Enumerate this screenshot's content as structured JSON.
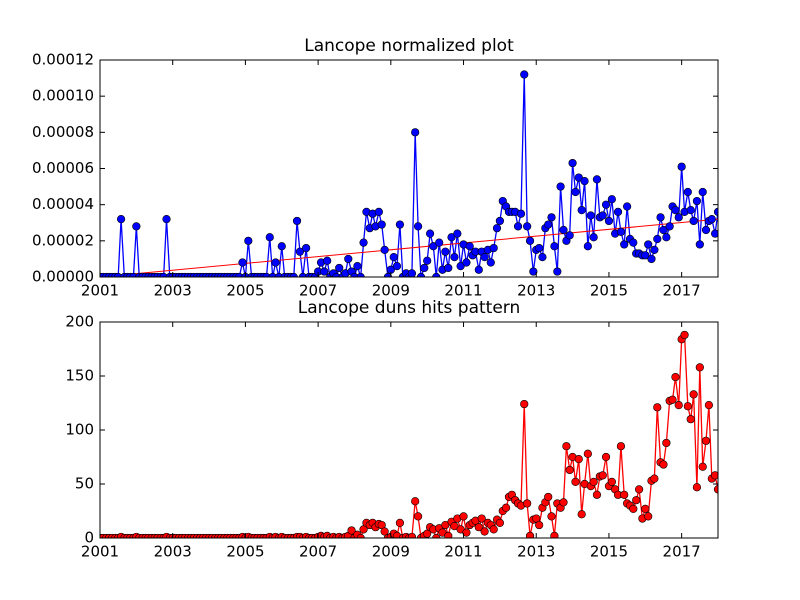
{
  "chart_data": [
    {
      "type": "line",
      "title": "Lancope normalized plot",
      "x": [
        2001,
        2001.08,
        2001.17,
        2001.25,
        2001.33,
        2001.42,
        2001.5,
        2001.58,
        2001.67,
        2001.75,
        2001.83,
        2001.92,
        2002,
        2002.08,
        2002.17,
        2002.25,
        2002.33,
        2002.42,
        2002.5,
        2002.58,
        2002.67,
        2002.75,
        2002.83,
        2002.92,
        2003,
        2003.08,
        2003.17,
        2003.25,
        2003.33,
        2003.42,
        2003.5,
        2003.58,
        2003.67,
        2003.75,
        2003.83,
        2003.92,
        2004,
        2004.08,
        2004.17,
        2004.25,
        2004.33,
        2004.42,
        2004.5,
        2004.58,
        2004.67,
        2004.75,
        2004.83,
        2004.92,
        2005,
        2005.08,
        2005.17,
        2005.25,
        2005.33,
        2005.42,
        2005.5,
        2005.58,
        2005.67,
        2005.75,
        2005.83,
        2005.92,
        2006,
        2006.08,
        2006.17,
        2006.25,
        2006.33,
        2006.42,
        2006.5,
        2006.58,
        2006.67,
        2006.75,
        2006.83,
        2006.92,
        2007,
        2007.08,
        2007.17,
        2007.25,
        2007.33,
        2007.42,
        2007.5,
        2007.58,
        2007.67,
        2007.75,
        2007.83,
        2007.92,
        2008,
        2008.08,
        2008.17,
        2008.25,
        2008.33,
        2008.42,
        2008.5,
        2008.58,
        2008.67,
        2008.75,
        2008.83,
        2008.92,
        2009,
        2009.08,
        2009.17,
        2009.25,
        2009.33,
        2009.42,
        2009.5,
        2009.58,
        2009.67,
        2009.75,
        2009.83,
        2009.92,
        2010,
        2010.08,
        2010.17,
        2010.25,
        2010.33,
        2010.42,
        2010.5,
        2010.58,
        2010.67,
        2010.75,
        2010.83,
        2010.92,
        2011,
        2011.08,
        2011.17,
        2011.25,
        2011.33,
        2011.42,
        2011.5,
        2011.58,
        2011.67,
        2011.75,
        2011.83,
        2011.92,
        2012,
        2012.08,
        2012.17,
        2012.25,
        2012.33,
        2012.42,
        2012.5,
        2012.58,
        2012.67,
        2012.75,
        2012.83,
        2012.92,
        2013,
        2013.08,
        2013.17,
        2013.25,
        2013.33,
        2013.42,
        2013.5,
        2013.58,
        2013.67,
        2013.75,
        2013.83,
        2013.92,
        2014,
        2014.08,
        2014.17,
        2014.25,
        2014.33,
        2014.42,
        2014.5,
        2014.58,
        2014.67,
        2014.75,
        2014.83,
        2014.92,
        2015,
        2015.08,
        2015.17,
        2015.25,
        2015.33,
        2015.42,
        2015.5,
        2015.58,
        2015.67,
        2015.75,
        2015.83,
        2015.92,
        2016,
        2016.08,
        2016.17,
        2016.25,
        2016.33,
        2016.42,
        2016.5,
        2016.58,
        2016.67,
        2016.75,
        2016.83,
        2016.92,
        2017,
        2017.08,
        2017.17,
        2017.25,
        2017.33,
        2017.42,
        2017.5,
        2017.58,
        2017.67,
        2017.75,
        2017.83,
        2017.92,
        2018
      ],
      "series": [
        {
          "color": "#0000ff",
          "values": [
            0,
            0,
            0,
            0,
            0,
            0,
            0,
            3.2e-05,
            0,
            0,
            0,
            0,
            2.8e-05,
            0,
            0,
            0,
            0,
            0,
            0,
            0,
            0,
            0,
            3.2e-05,
            0,
            0,
            0,
            0,
            0,
            0,
            0,
            0,
            0,
            0,
            0,
            0,
            0,
            0,
            0,
            0,
            0,
            0,
            0,
            0,
            0,
            0,
            0,
            0,
            8e-06,
            0,
            2e-05,
            0,
            0,
            0,
            0,
            0,
            0,
            2.2e-05,
            0,
            8e-06,
            0,
            1.7e-05,
            0,
            0,
            0,
            0,
            3.1e-05,
            1.4e-05,
            0,
            1.6e-05,
            0,
            0,
            0,
            3e-06,
            8e-06,
            3e-06,
            9e-06,
            0,
            2e-06,
            0,
            5e-06,
            0,
            2e-06,
            1e-05,
            3e-06,
            0,
            6e-06,
            0,
            1.9e-05,
            3.6e-05,
            2.7e-05,
            3.5e-05,
            2.8e-05,
            3.6e-05,
            2.9e-05,
            1.5e-05,
            0,
            4e-06,
            1.1e-05,
            6e-06,
            2.9e-05,
            0,
            2e-06,
            0,
            2e-06,
            8e-05,
            2.8e-05,
            0,
            5e-06,
            9e-06,
            2.4e-05,
            1.7e-05,
            0,
            1.9e-05,
            4e-06,
            1.4e-05,
            5e-06,
            2.2e-05,
            1.1e-05,
            2.4e-05,
            6e-06,
            1.8e-05,
            8e-06,
            1.7e-05,
            1.2e-05,
            1.4e-05,
            4e-06,
            1.4e-05,
            1.1e-05,
            1.5e-05,
            8e-06,
            1.6e-05,
            2.7e-05,
            3.1e-05,
            4.2e-05,
            3.9e-05,
            3.6e-05,
            3.6e-05,
            3.6e-05,
            2.8e-05,
            3.5e-05,
            0.000112,
            2.8e-05,
            2e-05,
            3e-06,
            1.5e-05,
            1.6e-05,
            1.1e-05,
            2.7e-05,
            2.9e-05,
            3.3e-05,
            1.7e-05,
            3e-06,
            5e-05,
            2.6e-05,
            2e-05,
            2.3e-05,
            6.3e-05,
            4.7e-05,
            5.5e-05,
            3.7e-05,
            5.3e-05,
            1.7e-05,
            3.4e-05,
            2.2e-05,
            5.4e-05,
            3.3e-05,
            3.4e-05,
            4e-05,
            3.1e-05,
            4.3e-05,
            2.4e-05,
            3.6e-05,
            2.5e-05,
            1.8e-05,
            3.9e-05,
            2.1e-05,
            1.9e-05,
            1.3e-05,
            1.3e-05,
            1.2e-05,
            1.2e-05,
            1.8e-05,
            1e-05,
            1.5e-05,
            2.1e-05,
            3.3e-05,
            2.6e-05,
            2.2e-05,
            2.8e-05,
            3.9e-05,
            3.7e-05,
            3.3e-05,
            6.1e-05,
            3.6e-05,
            4.7e-05,
            3.7e-05,
            3.1e-05,
            4.2e-05,
            1.8e-05,
            4.7e-05,
            2.6e-05,
            3.1e-05,
            3.2e-05,
            2.4e-05,
            3.6e-05
          ]
        }
      ],
      "trend": {
        "x": [
          2001,
          2018
        ],
        "values": [
          0,
          3.2e-05
        ],
        "color": "#ff0000"
      },
      "xlim": [
        2001,
        2018
      ],
      "xticks": [
        2001,
        2003,
        2005,
        2007,
        2009,
        2011,
        2013,
        2015,
        2017
      ],
      "ylim": [
        0,
        0.00012
      ],
      "yticks": [
        {
          "value": 0,
          "label": "0.00000"
        },
        {
          "value": 2e-05,
          "label": "0.00002"
        },
        {
          "value": 4e-05,
          "label": "0.00004"
        },
        {
          "value": 6e-05,
          "label": "0.00006"
        },
        {
          "value": 8e-05,
          "label": "0.00008"
        },
        {
          "value": 0.0001,
          "label": "0.00010"
        },
        {
          "value": 0.00012,
          "label": "0.00012"
        }
      ]
    },
    {
      "type": "line",
      "title": "Lancope duns hits pattern",
      "x": [
        2001,
        2001.08,
        2001.17,
        2001.25,
        2001.33,
        2001.42,
        2001.5,
        2001.58,
        2001.67,
        2001.75,
        2001.83,
        2001.92,
        2002,
        2002.08,
        2002.17,
        2002.25,
        2002.33,
        2002.42,
        2002.5,
        2002.58,
        2002.67,
        2002.75,
        2002.83,
        2002.92,
        2003,
        2003.08,
        2003.17,
        2003.25,
        2003.33,
        2003.42,
        2003.5,
        2003.58,
        2003.67,
        2003.75,
        2003.83,
        2003.92,
        2004,
        2004.08,
        2004.17,
        2004.25,
        2004.33,
        2004.42,
        2004.5,
        2004.58,
        2004.67,
        2004.75,
        2004.83,
        2004.92,
        2005,
        2005.08,
        2005.17,
        2005.25,
        2005.33,
        2005.42,
        2005.5,
        2005.58,
        2005.67,
        2005.75,
        2005.83,
        2005.92,
        2006,
        2006.08,
        2006.17,
        2006.25,
        2006.33,
        2006.42,
        2006.5,
        2006.58,
        2006.67,
        2006.75,
        2006.83,
        2006.92,
        2007,
        2007.08,
        2007.17,
        2007.25,
        2007.33,
        2007.42,
        2007.5,
        2007.58,
        2007.67,
        2007.75,
        2007.83,
        2007.92,
        2008,
        2008.08,
        2008.17,
        2008.25,
        2008.33,
        2008.42,
        2008.5,
        2008.58,
        2008.67,
        2008.75,
        2008.83,
        2008.92,
        2009,
        2009.08,
        2009.17,
        2009.25,
        2009.33,
        2009.42,
        2009.5,
        2009.58,
        2009.67,
        2009.75,
        2009.83,
        2009.92,
        2010,
        2010.08,
        2010.17,
        2010.25,
        2010.33,
        2010.42,
        2010.5,
        2010.58,
        2010.67,
        2010.75,
        2010.83,
        2010.92,
        2011,
        2011.08,
        2011.17,
        2011.25,
        2011.33,
        2011.42,
        2011.5,
        2011.58,
        2011.67,
        2011.75,
        2011.83,
        2011.92,
        2012,
        2012.08,
        2012.17,
        2012.25,
        2012.33,
        2012.42,
        2012.5,
        2012.58,
        2012.67,
        2012.75,
        2012.83,
        2012.92,
        2013,
        2013.08,
        2013.17,
        2013.25,
        2013.33,
        2013.42,
        2013.5,
        2013.58,
        2013.67,
        2013.75,
        2013.83,
        2013.92,
        2014,
        2014.08,
        2014.17,
        2014.25,
        2014.33,
        2014.42,
        2014.5,
        2014.58,
        2014.67,
        2014.75,
        2014.83,
        2014.92,
        2015,
        2015.08,
        2015.17,
        2015.25,
        2015.33,
        2015.42,
        2015.5,
        2015.58,
        2015.67,
        2015.75,
        2015.83,
        2015.92,
        2016,
        2016.08,
        2016.17,
        2016.25,
        2016.33,
        2016.42,
        2016.5,
        2016.58,
        2016.67,
        2016.75,
        2016.83,
        2016.92,
        2017,
        2017.08,
        2017.17,
        2017.25,
        2017.33,
        2017.42,
        2017.5,
        2017.58,
        2017.67,
        2017.75,
        2017.83,
        2017.92,
        2018
      ],
      "series": [
        {
          "color": "#ff0000",
          "values": [
            0,
            0,
            0,
            0,
            0,
            0,
            0,
            1,
            0,
            0,
            0,
            0,
            1,
            0,
            0,
            0,
            0,
            0,
            0,
            0,
            0,
            0,
            1,
            0,
            0,
            0,
            0,
            0,
            0,
            0,
            0,
            0,
            0,
            0,
            0,
            0,
            0,
            0,
            0,
            0,
            0,
            0,
            0,
            0,
            0,
            0,
            0,
            1,
            0,
            1,
            0,
            0,
            0,
            0,
            0,
            0,
            1,
            0,
            1,
            0,
            1,
            0,
            0,
            0,
            0,
            1,
            1,
            0,
            1,
            0,
            0,
            0,
            1,
            2,
            1,
            2,
            0,
            1,
            0,
            1,
            0,
            1,
            2,
            7,
            0,
            3,
            0,
            8,
            14,
            12,
            14,
            10,
            13,
            12,
            6,
            0,
            1,
            4,
            2,
            14,
            0,
            1,
            0,
            1,
            34,
            20,
            0,
            2,
            4,
            10,
            8,
            0,
            9,
            5,
            12,
            2,
            15,
            11,
            18,
            8,
            20,
            5,
            12,
            14,
            16,
            10,
            18,
            6,
            14,
            12,
            8,
            17,
            14,
            25,
            28,
            38,
            40,
            35,
            32,
            30,
            124,
            32,
            2,
            17,
            18,
            12,
            28,
            33,
            38,
            20,
            2,
            32,
            28,
            33,
            85,
            63,
            75,
            52,
            73,
            22,
            50,
            78,
            48,
            52,
            40,
            57,
            58,
            75,
            48,
            52,
            45,
            40,
            85,
            40,
            32,
            30,
            27,
            35,
            45,
            18,
            27,
            20,
            53,
            55,
            121,
            70,
            68,
            88,
            127,
            128,
            149,
            123,
            184,
            188,
            122,
            110,
            133,
            47,
            158,
            66,
            90,
            123,
            55,
            58,
            45
          ]
        }
      ],
      "xlim": [
        2001,
        2018
      ],
      "xticks": [
        2001,
        2003,
        2005,
        2007,
        2009,
        2011,
        2013,
        2015,
        2017
      ],
      "ylim": [
        0,
        200
      ],
      "yticks": [
        0,
        50,
        100,
        150,
        200
      ]
    }
  ]
}
